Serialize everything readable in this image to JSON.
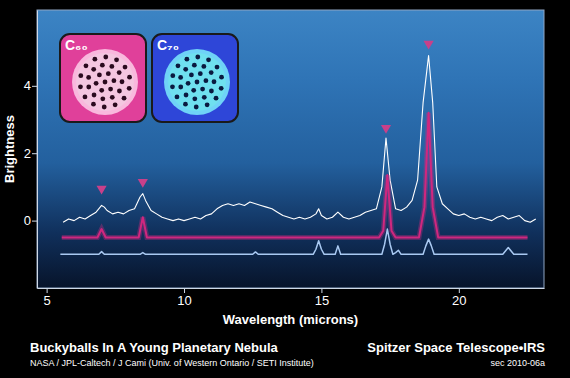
{
  "chart_data": {
    "type": "line",
    "title": "Buckyballs In A Young Planetary Nebula",
    "subtitle": "NASA / JPL-Caltech / J Cami (Univ. of Western Ontario / SETI Institute)",
    "annotations": [
      "C₆₀",
      "C₇₀",
      "Spitzer Space Telescope•IRS",
      "sec 2010-06a"
    ],
    "x_label": "Wavelength (microns)",
    "y_label": "Brightness",
    "xlim": [
      4.65,
      23.1
    ],
    "ylim": [
      -2,
      6.25
    ],
    "xticks": [
      5,
      10,
      15,
      20
    ],
    "yticks": [
      0,
      2,
      4
    ],
    "grid": false,
    "series": [
      {
        "type": "line",
        "color": "#ffffff",
        "x": [
          5.6,
          5.8,
          6.0,
          6.2,
          6.4,
          6.6,
          6.8,
          7.0,
          7.1,
          7.2,
          7.4,
          7.6,
          7.8,
          8.0,
          8.2,
          8.4,
          8.5,
          8.6,
          8.8,
          9.0,
          9.2,
          9.4,
          9.6,
          9.8,
          10.0,
          10.2,
          10.4,
          10.6,
          10.8,
          11.0,
          11.2,
          11.4,
          11.6,
          11.8,
          12.0,
          12.2,
          12.4,
          12.6,
          12.8,
          13.0,
          13.2,
          13.4,
          13.6,
          13.8,
          14.0,
          14.2,
          14.4,
          14.6,
          14.8,
          14.9,
          15.0,
          15.2,
          15.4,
          15.6,
          15.8,
          16.0,
          16.2,
          16.4,
          16.6,
          16.8,
          17.0,
          17.2,
          17.35,
          17.5,
          17.7,
          17.9,
          18.1,
          18.3,
          18.5,
          18.7,
          18.9,
          19.05,
          19.2,
          19.4,
          19.6,
          19.8,
          20.0,
          20.2,
          20.4,
          20.6,
          20.8,
          21.0,
          21.2,
          21.4,
          21.6,
          21.8,
          22.0,
          22.2,
          22.4,
          22.6,
          22.8
        ],
        "values": [
          -0.05,
          0.05,
          0,
          0.1,
          0.05,
          0.15,
          0.25,
          0.45,
          0.4,
          0.3,
          0.2,
          0.25,
          0.2,
          0.3,
          0.35,
          0.7,
          0.8,
          0.6,
          0.3,
          0.2,
          0.1,
          0.05,
          0,
          0.05,
          0,
          0.05,
          0.1,
          0.05,
          0.15,
          0.2,
          0.35,
          0.45,
          0.5,
          0.45,
          0.5,
          0.45,
          0.55,
          0.5,
          0.45,
          0.4,
          0.35,
          0.25,
          0.15,
          0.1,
          0.05,
          0.1,
          0.05,
          0.1,
          0.2,
          0.35,
          0.15,
          0.05,
          0.1,
          0.25,
          0.1,
          0.05,
          0.1,
          0.15,
          0.25,
          0.3,
          0.35,
          1.0,
          2.45,
          1.2,
          0.35,
          0.3,
          0.4,
          0.6,
          1.2,
          3.5,
          4.9,
          3.5,
          1.0,
          0.5,
          0.35,
          0.2,
          0.15,
          0.2,
          0.1,
          0.05,
          0.1,
          0.05,
          0,
          0.1,
          0.15,
          0.05,
          0.1,
          0.15,
          0,
          -0.05,
          0.05
        ]
      },
      {
        "type": "line",
        "color": "#d0277f",
        "x": [
          5.55,
          6.85,
          7.0,
          7.15,
          8.35,
          8.5,
          8.65,
          17.1,
          17.25,
          17.4,
          17.55,
          17.7,
          18.55,
          18.75,
          18.9,
          19.05,
          19.25,
          22.5
        ],
        "values": [
          -0.5,
          -0.5,
          -0.25,
          -0.5,
          -0.5,
          0.1,
          -0.5,
          -0.5,
          -0.3,
          1.35,
          -0.3,
          -0.5,
          -0.5,
          0.4,
          3.2,
          0.4,
          -0.5,
          -0.5
        ]
      },
      {
        "type": "line",
        "color": "#a9c9f2",
        "x": [
          5.5,
          6.9,
          7.0,
          7.1,
          8.4,
          8.5,
          8.6,
          12.5,
          12.6,
          12.7,
          14.7,
          14.8,
          14.9,
          15.0,
          15.1,
          15.5,
          15.6,
          15.7,
          17.2,
          17.3,
          17.4,
          17.5,
          17.6,
          17.7,
          17.8,
          17.9,
          18.7,
          18.8,
          18.9,
          19.0,
          19.1,
          21.6,
          21.8,
          22.0,
          22.5
        ],
        "values": [
          -1,
          -1,
          -0.92,
          -1,
          -1,
          -0.95,
          -1,
          -1,
          -0.93,
          -1,
          -1,
          -0.85,
          -0.6,
          -0.85,
          -1,
          -1,
          -0.75,
          -1,
          -1,
          -0.7,
          -0.25,
          -0.7,
          -1,
          -0.95,
          -0.88,
          -1,
          -1,
          -0.75,
          -0.55,
          -0.75,
          -1,
          -1,
          -0.8,
          -1,
          -1
        ]
      },
      {
        "type": "scatter",
        "marker": "triangle",
        "color": "#c8408a",
        "x": [
          7.0,
          8.5,
          17.35,
          18.9
        ],
        "values": [
          0.95,
          1.15,
          2.75,
          5.25
        ]
      }
    ]
  }
}
